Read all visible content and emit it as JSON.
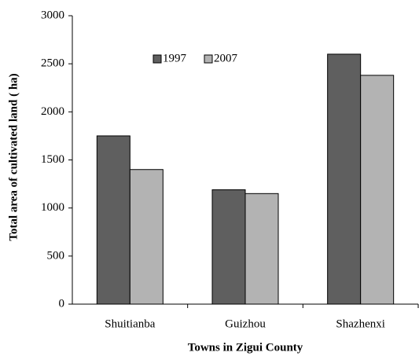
{
  "chart_data": {
    "type": "bar",
    "x_label": "Towns in Zigui County",
    "y_label": "Total area of cultivated land ( ha)",
    "categories": [
      "Shuitianba",
      "Guizhou",
      "Shazhenxi"
    ],
    "series": [
      {
        "name": "1997",
        "color": "#5f5f5f",
        "values": [
          1750,
          1190,
          2600
        ]
      },
      {
        "name": "2007",
        "color": "#b3b3b3",
        "values": [
          1400,
          1150,
          2380
        ]
      }
    ],
    "ylim": [
      0,
      3000
    ],
    "yticks": [
      0,
      500,
      1000,
      1500,
      2000,
      2500,
      3000
    ],
    "grid": false,
    "legend": "top"
  }
}
